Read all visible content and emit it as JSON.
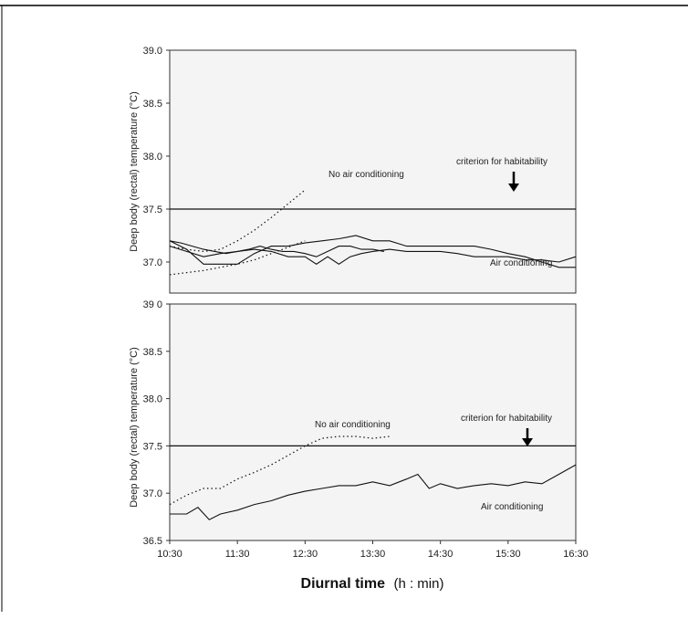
{
  "chart_data": [
    {
      "type": "line",
      "panel": "top",
      "ylabel": "Deep body (rectal) temperature (°C)",
      "ylim": [
        36.5,
        39.0
      ],
      "yticks": [
        "39.0",
        "38.5",
        "38.0",
        "37.5",
        "37.0"
      ],
      "xlim": [
        "10:30",
        "16:30"
      ],
      "reference_line": {
        "y": 37.5,
        "label": "criterion for habitability"
      },
      "annotations": {
        "no_ac": "No air conditioning",
        "ac": "Air conditioning"
      },
      "series": [
        {
          "style": "dotted",
          "x": [
            "10:30",
            "10:45",
            "11:00",
            "11:15",
            "11:30",
            "11:45",
            "12:00",
            "12:15",
            "12:30"
          ],
          "y": [
            37.15,
            37.12,
            37.1,
            37.12,
            37.2,
            37.3,
            37.42,
            37.55,
            37.68
          ]
        },
        {
          "style": "dotted",
          "x": [
            "10:30",
            "10:45",
            "11:00",
            "11:15",
            "11:30",
            "11:45",
            "12:00",
            "12:15",
            "12:30"
          ],
          "y": [
            36.88,
            36.9,
            36.92,
            36.95,
            36.98,
            37.02,
            37.08,
            37.14,
            37.2
          ]
        },
        {
          "style": "solid",
          "x": [
            "10:30",
            "10:40",
            "10:50",
            "11:00",
            "11:10",
            "11:20",
            "11:30",
            "11:40",
            "11:50",
            "12:00",
            "12:10",
            "12:20",
            "12:30",
            "12:40",
            "12:50",
            "13:00",
            "13:10",
            "13:20",
            "13:30",
            "13:40"
          ],
          "y": [
            37.2,
            37.18,
            37.15,
            37.12,
            37.1,
            37.08,
            37.1,
            37.12,
            37.15,
            37.12,
            37.1,
            37.1,
            37.08,
            37.05,
            37.1,
            37.15,
            37.15,
            37.12,
            37.12,
            37.1
          ]
        },
        {
          "style": "solid",
          "x": [
            "10:30",
            "10:45",
            "11:00",
            "11:15",
            "11:30",
            "11:45",
            "12:00",
            "12:15",
            "12:30",
            "12:40",
            "12:50",
            "13:00",
            "13:10",
            "13:20",
            "13:30",
            "13:45",
            "14:00",
            "14:15",
            "14:30",
            "14:45",
            "15:00",
            "15:15",
            "15:30",
            "15:45",
            "16:00",
            "16:15",
            "16:30"
          ],
          "y": [
            37.15,
            37.1,
            37.05,
            37.08,
            37.1,
            37.12,
            37.1,
            37.05,
            37.05,
            36.98,
            37.05,
            36.98,
            37.05,
            37.08,
            37.1,
            37.12,
            37.1,
            37.1,
            37.1,
            37.08,
            37.05,
            37.05,
            37.05,
            37.02,
            37.02,
            37.0,
            37.05
          ]
        },
        {
          "style": "solid",
          "x": [
            "10:30",
            "10:45",
            "11:00",
            "11:15",
            "11:30",
            "11:45",
            "12:00",
            "12:15",
            "12:30",
            "12:45",
            "13:00",
            "13:15",
            "13:30",
            "13:45",
            "14:00",
            "14:15",
            "14:30",
            "14:45",
            "15:00",
            "15:15",
            "15:30",
            "15:45",
            "16:00",
            "16:15",
            "16:30"
          ],
          "y": [
            37.2,
            37.12,
            36.98,
            36.98,
            36.98,
            37.08,
            37.15,
            37.15,
            37.18,
            37.2,
            37.22,
            37.25,
            37.2,
            37.2,
            37.15,
            37.15,
            37.15,
            37.15,
            37.15,
            37.12,
            37.08,
            37.05,
            37.0,
            36.95,
            36.95
          ]
        }
      ]
    },
    {
      "type": "line",
      "panel": "bottom",
      "ylabel": "Deep body (rectal) temperature (°C)",
      "ylim": [
        36.5,
        39.0
      ],
      "yticks": [
        "39 0",
        "38.5",
        "38.0",
        "37.5",
        "37.0",
        "36.5"
      ],
      "x_tick_labels": [
        "10:30",
        "11:30",
        "12:30",
        "13:30",
        "14:30",
        "15:30",
        "16:30"
      ],
      "xlim": [
        "10:30",
        "16:30"
      ],
      "reference_line": {
        "y": 37.5,
        "label": "criterion for habitability"
      },
      "annotations": {
        "no_ac": "No air conditioning",
        "ac": "Air conditioning"
      },
      "series": [
        {
          "style": "dotted",
          "x": [
            "10:30",
            "10:45",
            "11:00",
            "11:15",
            "11:30",
            "11:45",
            "12:00",
            "12:15",
            "12:30",
            "12:45",
            "13:00",
            "13:15",
            "13:30",
            "13:45"
          ],
          "y": [
            36.88,
            36.98,
            37.05,
            37.05,
            37.15,
            37.22,
            37.3,
            37.4,
            37.5,
            37.58,
            37.6,
            37.6,
            37.58,
            37.6
          ]
        },
        {
          "style": "solid",
          "x": [
            "10:30",
            "10:45",
            "10:55",
            "11:05",
            "11:15",
            "11:30",
            "11:45",
            "12:00",
            "12:15",
            "12:30",
            "12:45",
            "13:00",
            "13:15",
            "13:30",
            "13:45",
            "14:00",
            "14:10",
            "14:20",
            "14:30",
            "14:45",
            "15:00",
            "15:15",
            "15:30",
            "15:45",
            "16:00",
            "16:15",
            "16:30"
          ],
          "y": [
            36.78,
            36.78,
            36.85,
            36.72,
            36.78,
            36.82,
            36.88,
            36.92,
            36.98,
            37.02,
            37.05,
            37.08,
            37.08,
            37.12,
            37.08,
            37.15,
            37.2,
            37.05,
            37.1,
            37.05,
            37.08,
            37.1,
            37.08,
            37.12,
            37.1,
            37.2,
            37.3
          ]
        }
      ]
    }
  ],
  "xaxis": {
    "title_main": "Diurnal time",
    "title_rest": "(h : min)"
  }
}
